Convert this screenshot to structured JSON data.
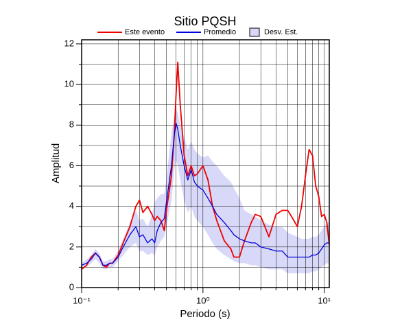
{
  "chart_data": {
    "type": "line",
    "title": "Sitio PQSH",
    "xlabel": "Periodo (s)",
    "ylabel": "Amplitud",
    "xscale": "log",
    "grid": true,
    "legend": "top",
    "xlim": [
      0.1,
      11
    ],
    "ylim": [
      0,
      12.2
    ],
    "xticks": [
      {
        "value": 0.1,
        "label": "10⁻¹"
      },
      {
        "value": 1,
        "label": "10⁰"
      },
      {
        "value": 10,
        "label": "10¹"
      }
    ],
    "xminor": [
      0.2,
      0.3,
      0.4,
      0.5,
      0.6,
      0.7,
      0.8,
      0.9,
      2,
      3,
      4,
      5,
      6,
      7,
      8,
      9
    ],
    "yticks": [
      0,
      2,
      4,
      6,
      8,
      10,
      12
    ],
    "yminor": [
      1,
      3,
      5,
      7,
      9,
      11
    ],
    "x": [
      0.1,
      0.11,
      0.12,
      0.13,
      0.14,
      0.15,
      0.16,
      0.17,
      0.18,
      0.2,
      0.22,
      0.25,
      0.28,
      0.3,
      0.32,
      0.35,
      0.38,
      0.4,
      0.42,
      0.45,
      0.48,
      0.5,
      0.55,
      0.58,
      0.6,
      0.62,
      0.65,
      0.7,
      0.75,
      0.8,
      0.85,
      0.9,
      1.0,
      1.1,
      1.2,
      1.3,
      1.5,
      1.7,
      1.8,
      2.0,
      2.2,
      2.5,
      2.7,
      3.0,
      3.5,
      4.0,
      4.5,
      5.0,
      5.5,
      6.0,
      6.5,
      7.0,
      7.5,
      8.0,
      8.5,
      9.0,
      9.5,
      10,
      10.5,
      11
    ],
    "band": {
      "name": "Desv. Est.",
      "color": "#d8d8f8",
      "lower": [
        1.0,
        1.0,
        1.2,
        1.4,
        1.2,
        0.9,
        0.9,
        1.0,
        1.0,
        1.3,
        1.6,
        2.0,
        2.2,
        1.8,
        1.8,
        1.6,
        1.7,
        1.6,
        2.0,
        2.3,
        2.5,
        3.0,
        4.3,
        5.8,
        6.3,
        6.0,
        5.3,
        4.3,
        3.7,
        4.0,
        3.5,
        3.3,
        3.0,
        2.6,
        2.2,
        1.9,
        1.6,
        1.4,
        1.3,
        1.2,
        1.2,
        1.1,
        1.1,
        1.0,
        0.9,
        0.9,
        0.9,
        0.7,
        0.7,
        0.7,
        0.7,
        0.7,
        0.7,
        0.8,
        0.8,
        0.9,
        1.0,
        1.1,
        1.2,
        1.2
      ],
      "upper": [
        1.2,
        1.4,
        1.6,
        1.9,
        1.7,
        1.3,
        1.3,
        1.4,
        1.4,
        1.8,
        2.4,
        3.2,
        3.8,
        3.3,
        3.4,
        3.0,
        3.6,
        4.2,
        4.4,
        4.6,
        4.6,
        5.4,
        7.6,
        8.4,
        8.8,
        8.6,
        8.0,
        7.4,
        6.8,
        7.2,
        6.8,
        6.6,
        6.4,
        6.5,
        6.2,
        6.0,
        5.5,
        5.2,
        4.9,
        4.4,
        3.8,
        3.6,
        3.5,
        3.3,
        3.1,
        3.0,
        3.0,
        2.7,
        2.6,
        2.5,
        2.4,
        2.4,
        2.4,
        2.5,
        2.5,
        2.6,
        2.8,
        3.0,
        3.2,
        3.2
      ]
    },
    "series": [
      {
        "name": "Este evento",
        "color": "#ee0000",
        "values": [
          0.9,
          1.1,
          1.5,
          1.7,
          1.5,
          1.1,
          1.0,
          1.2,
          1.2,
          1.6,
          2.2,
          3.0,
          4.0,
          4.3,
          3.7,
          4.0,
          3.6,
          3.3,
          3.5,
          3.3,
          2.8,
          3.8,
          5.5,
          7.5,
          9.5,
          11.1,
          9.0,
          6.5,
          5.5,
          6.0,
          5.5,
          5.6,
          6.0,
          5.3,
          4.0,
          3.3,
          2.3,
          1.9,
          1.5,
          1.5,
          2.3,
          3.2,
          3.6,
          3.5,
          2.5,
          3.6,
          3.8,
          3.8,
          3.4,
          3.0,
          4.0,
          5.5,
          6.8,
          6.5,
          5.0,
          4.5,
          3.5,
          3.6,
          3.2,
          2.1
        ]
      },
      {
        "name": "Promedio",
        "color": "#0000dd",
        "values": [
          1.1,
          1.2,
          1.4,
          1.7,
          1.5,
          1.1,
          1.1,
          1.2,
          1.2,
          1.5,
          2.0,
          2.6,
          3.0,
          2.5,
          2.6,
          2.2,
          2.4,
          2.2,
          2.8,
          3.2,
          3.4,
          4.2,
          6.0,
          7.5,
          8.1,
          7.8,
          7.0,
          6.0,
          5.3,
          5.8,
          5.2,
          5.0,
          4.8,
          4.4,
          4.0,
          3.6,
          3.2,
          2.8,
          2.6,
          2.4,
          2.3,
          2.2,
          2.2,
          2.0,
          1.9,
          1.8,
          1.8,
          1.5,
          1.5,
          1.5,
          1.5,
          1.5,
          1.5,
          1.6,
          1.6,
          1.7,
          1.9,
          2.1,
          2.2,
          2.2
        ]
      }
    ]
  }
}
